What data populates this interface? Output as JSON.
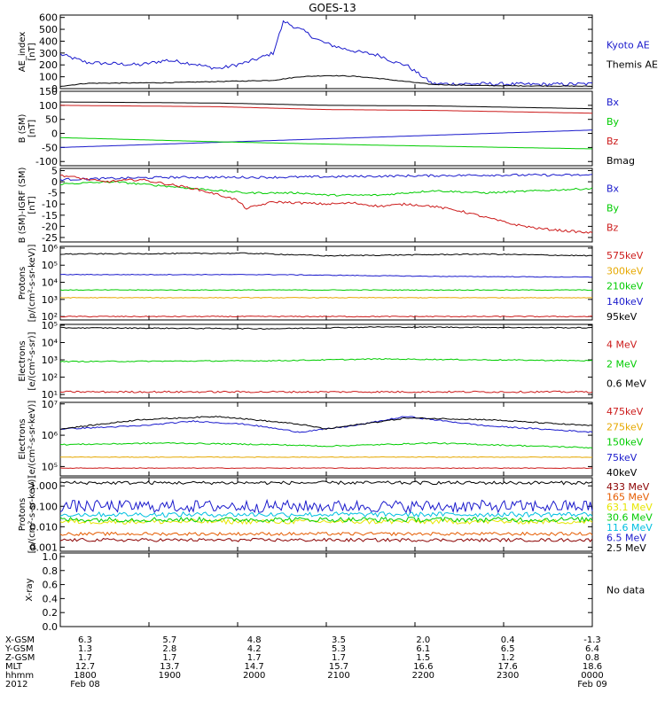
{
  "chart_data": {
    "title": "GOES-13",
    "type": "line",
    "panels": [
      {
        "id": "ae",
        "ylabel": "AE_index\n[nT]",
        "yticks": [
          "0",
          "100",
          "200",
          "300",
          "400",
          "500",
          "600"
        ],
        "ylim": [
          0,
          620
        ],
        "log": false,
        "series": [
          {
            "name": "Kyoto AE",
            "color": "#1a1acc",
            "x": [
              0,
              0.05,
              0.1,
              0.15,
              0.2,
              0.25,
              0.28,
              0.3,
              0.35,
              0.37,
              0.4,
              0.42,
              0.44,
              0.46,
              0.48,
              0.5,
              0.53,
              0.56,
              0.6,
              0.63,
              0.65,
              0.7,
              0.8,
              0.9,
              1.0
            ],
            "y": [
              290,
              220,
              210,
              200,
              240,
              210,
              180,
              170,
              220,
              250,
              300,
              570,
              520,
              480,
              420,
              380,
              340,
              310,
              280,
              220,
              200,
              40,
              40,
              35,
              40
            ],
            "noise": 15
          },
          {
            "name": "Themis AE",
            "color": "#000000",
            "x": [
              0,
              0.05,
              0.2,
              0.3,
              0.4,
              0.45,
              0.5,
              0.55,
              0.6,
              0.65,
              0.7,
              0.8,
              1.0
            ],
            "y": [
              20,
              45,
              50,
              60,
              70,
              100,
              110,
              105,
              85,
              60,
              35,
              25,
              20
            ],
            "noise": 3
          }
        ]
      },
      {
        "id": "b_sm",
        "ylabel": "B (SM)\n[nT]",
        "yticks": [
          "-100",
          "-50",
          "0",
          "50",
          "100",
          "150"
        ],
        "ylim": [
          -115,
          150
        ],
        "log": false,
        "series": [
          {
            "name": "Bx",
            "color": "#1a1acc",
            "x": [
              0,
              1
            ],
            "y": [
              -50,
              12
            ],
            "noise": 0
          },
          {
            "name": "By",
            "color": "#00cc00",
            "x": [
              0,
              0.3,
              0.6,
              1
            ],
            "y": [
              -15,
              -30,
              -42,
              -55
            ],
            "noise": 0
          },
          {
            "name": "Bz",
            "color": "#cc1a1a",
            "x": [
              0,
              0.3,
              0.5,
              0.7,
              1
            ],
            "y": [
              100,
              95,
              85,
              82,
              72
            ],
            "noise": 0
          },
          {
            "name": "Bmag",
            "color": "#000000",
            "x": [
              0,
              0.3,
              0.5,
              0.7,
              1
            ],
            "y": [
              112,
              108,
              100,
              98,
              88
            ],
            "noise": 0
          }
        ]
      },
      {
        "id": "db",
        "ylabel": "B (SM)-IGRF (SM)\n[nT]",
        "yticks": [
          "-25",
          "-20",
          "-15",
          "-10",
          "-5",
          "0",
          "5"
        ],
        "ylim": [
          -27,
          6
        ],
        "log": false,
        "series": [
          {
            "name": "Bx",
            "color": "#1a1acc",
            "x": [
              0,
              0.2,
              0.4,
              0.6,
              0.8,
              1
            ],
            "y": [
              1,
              2,
              2,
              2.5,
              3,
              3
            ],
            "noise": 0.5
          },
          {
            "name": "By",
            "color": "#00cc00",
            "x": [
              0,
              0.1,
              0.2,
              0.3,
              0.35,
              0.4,
              0.45,
              0.5,
              0.6,
              0.7,
              0.8,
              0.9,
              1
            ],
            "y": [
              -1,
              0,
              -2,
              -4,
              -5,
              -5,
              -5,
              -6,
              -6,
              -4,
              -5,
              -4,
              -3
            ],
            "noise": 0.4
          },
          {
            "name": "Bz",
            "color": "#cc1a1a",
            "x": [
              0,
              0.08,
              0.15,
              0.2,
              0.25,
              0.3,
              0.33,
              0.35,
              0.4,
              0.5,
              0.55,
              0.6,
              0.65,
              0.7,
              0.75,
              0.8,
              0.85,
              0.9,
              0.95,
              1
            ],
            "y": [
              3,
              0,
              1,
              -1,
              -3,
              -6,
              -8,
              -12,
              -9,
              -10,
              -9.5,
              -11,
              -10,
              -11,
              -13,
              -16,
              -19,
              -21,
              -22,
              -23
            ],
            "noise": 0.5
          }
        ]
      },
      {
        "id": "protons_low",
        "ylabel": "Protons\n[p/(cm²-s-sr-keV)]",
        "yticks": [
          "10²",
          "10³",
          "10⁴",
          "10⁵",
          "10⁶"
        ],
        "ylog": [
          1.8,
          6.1
        ],
        "log": true,
        "series": [
          {
            "name": "575keV",
            "color": "#cc1a1a",
            "x": [
              0,
              1
            ],
            "y": [
              2.0,
              2.0
            ],
            "noise": 0.03
          },
          {
            "name": "300keV",
            "color": "#e6a800",
            "x": [
              0,
              1
            ],
            "y": [
              3.1,
              3.1
            ],
            "noise": 0.02
          },
          {
            "name": "210keV",
            "color": "#00cc00",
            "x": [
              0,
              1
            ],
            "y": [
              3.55,
              3.55
            ],
            "noise": 0.02
          },
          {
            "name": "140keV",
            "color": "#1a1acc",
            "x": [
              0,
              0.4,
              0.7,
              1
            ],
            "y": [
              4.45,
              4.45,
              4.35,
              4.3
            ],
            "noise": 0.02
          },
          {
            "name": "95keV",
            "color": "#000000",
            "x": [
              0,
              0.35,
              0.5,
              0.8,
              1
            ],
            "y": [
              5.65,
              5.7,
              5.55,
              5.65,
              5.55
            ],
            "noise": 0.03
          }
        ]
      },
      {
        "id": "electrons_low",
        "ylabel": "Electrons\n[e/(cm²-s-sr)]",
        "yticks": [
          "10¹",
          "10²",
          "10³",
          "10⁴",
          "10⁵"
        ],
        "ylog": [
          0.8,
          5.05
        ],
        "log": true,
        "series": [
          {
            "name": "4 MeV",
            "color": "#cc1a1a",
            "x": [
              0,
              1
            ],
            "y": [
              1.15,
              1.15
            ],
            "noise": 0.05
          },
          {
            "name": "2 MeV",
            "color": "#00cc00",
            "x": [
              0,
              0.4,
              0.6,
              1
            ],
            "y": [
              2.9,
              2.95,
              3.05,
              2.95
            ],
            "noise": 0.03
          },
          {
            "name": "0.6 MeV",
            "color": "#000000",
            "x": [
              0,
              0.4,
              0.6,
              1
            ],
            "y": [
              4.85,
              4.8,
              4.9,
              4.85
            ],
            "noise": 0.03
          }
        ]
      },
      {
        "id": "electrons_mageis",
        "ylabel": "Electrons\n[e/(cm²-s-sr-keV)]",
        "yticks": [
          "10⁵",
          "10⁶",
          "10⁷"
        ],
        "ylog": [
          4.7,
          7.05
        ],
        "log": true,
        "series": [
          {
            "name": "475keV",
            "color": "#cc1a1a",
            "x": [
              0,
              1
            ],
            "y": [
              4.95,
              4.95
            ],
            "noise": 0.01
          },
          {
            "name": "275keV",
            "color": "#e6a800",
            "x": [
              0,
              1
            ],
            "y": [
              5.3,
              5.3
            ],
            "noise": 0.01
          },
          {
            "name": "150keV",
            "color": "#00cc00",
            "x": [
              0,
              0.2,
              0.4,
              0.5,
              0.7,
              1
            ],
            "y": [
              5.7,
              5.75,
              5.7,
              5.65,
              5.75,
              5.6
            ],
            "noise": 0.02
          },
          {
            "name": "75keV",
            "color": "#1a1acc",
            "x": [
              0,
              0.15,
              0.25,
              0.35,
              0.45,
              0.55,
              0.65,
              0.8,
              1
            ],
            "y": [
              6.2,
              6.3,
              6.45,
              6.35,
              6.1,
              6.3,
              6.6,
              6.3,
              6.1
            ],
            "noise": 0.02
          },
          {
            "name": "40keV",
            "color": "#000000",
            "x": [
              0,
              0.15,
              0.3,
              0.45,
              0.5,
              0.65,
              0.8,
              1
            ],
            "y": [
              6.2,
              6.5,
              6.6,
              6.35,
              6.2,
              6.55,
              6.5,
              6.3
            ],
            "noise": 0.02
          }
        ]
      },
      {
        "id": "protons_high",
        "ylabel": "Protons\n[p/(cm²-s-sr-keV)]",
        "yticks": [
          "0.001",
          "0.010",
          "0.100",
          "1.000"
        ],
        "ylog": [
          -3.2,
          0.4
        ],
        "log": true,
        "series": [
          {
            "name": "433 MeV",
            "color": "#8b0000",
            "x": [
              0,
              1
            ],
            "y": [
              -2.65,
              -2.65
            ],
            "noise": 0.08
          },
          {
            "name": "165 MeV",
            "color": "#e65c00",
            "x": [
              0,
              1
            ],
            "y": [
              -2.35,
              -2.35
            ],
            "noise": 0.08
          },
          {
            "name": "63.1 MeV",
            "color": "#e6e600",
            "x": [
              0,
              1
            ],
            "y": [
              -1.75,
              -1.75
            ],
            "noise": 0.12
          },
          {
            "name": "30.6 MeV",
            "color": "#00cc00",
            "x": [
              0,
              1
            ],
            "y": [
              -1.65,
              -1.65
            ],
            "noise": 0.12
          },
          {
            "name": "11.6 MeV",
            "color": "#00c0e0",
            "x": [
              0,
              1
            ],
            "y": [
              -1.4,
              -1.4
            ],
            "noise": 0.12
          },
          {
            "name": "6.5 MeV",
            "color": "#1a1acc",
            "x": [
              0,
              1
            ],
            "y": [
              -1.0,
              -1.0
            ],
            "noise": 0.3
          },
          {
            "name": "2.5 MeV",
            "color": "#000000",
            "x": [
              0,
              1
            ],
            "y": [
              0.15,
              0.15
            ],
            "noise": 0.08
          }
        ]
      },
      {
        "id": "xray",
        "ylabel": "X-ray",
        "yticks": [
          "0.0",
          "0.2",
          "0.4",
          "0.6",
          "0.8",
          "1.0"
        ],
        "ylim": [
          0,
          1.05
        ],
        "log": false,
        "series": [],
        "note": "No data"
      }
    ],
    "ephemeris": {
      "rows": [
        {
          "label": "X-GSM",
          "values": [
            "6.3",
            "5.7",
            "4.8",
            "3.5",
            "2.0",
            "0.4",
            "-1.3"
          ]
        },
        {
          "label": "Y-GSM",
          "values": [
            "1.3",
            "2.8",
            "4.2",
            "5.3",
            "6.1",
            "6.5",
            "6.4"
          ]
        },
        {
          "label": "Z-GSM",
          "values": [
            "1.7",
            "1.7",
            "1.7",
            "1.7",
            "1.5",
            "1.2",
            "0.8"
          ]
        },
        {
          "label": "MLT",
          "values": [
            "12.7",
            "13.7",
            "14.7",
            "15.7",
            "16.6",
            "17.6",
            "18.6"
          ]
        },
        {
          "label": "hhmm",
          "values": [
            "1800",
            "1900",
            "2000",
            "2100",
            "2200",
            "2300",
            "0000"
          ]
        },
        {
          "label": "2012",
          "values": [
            "Feb 08",
            "",
            "",
            "",
            "",
            "",
            "Feb 09"
          ]
        }
      ]
    }
  }
}
